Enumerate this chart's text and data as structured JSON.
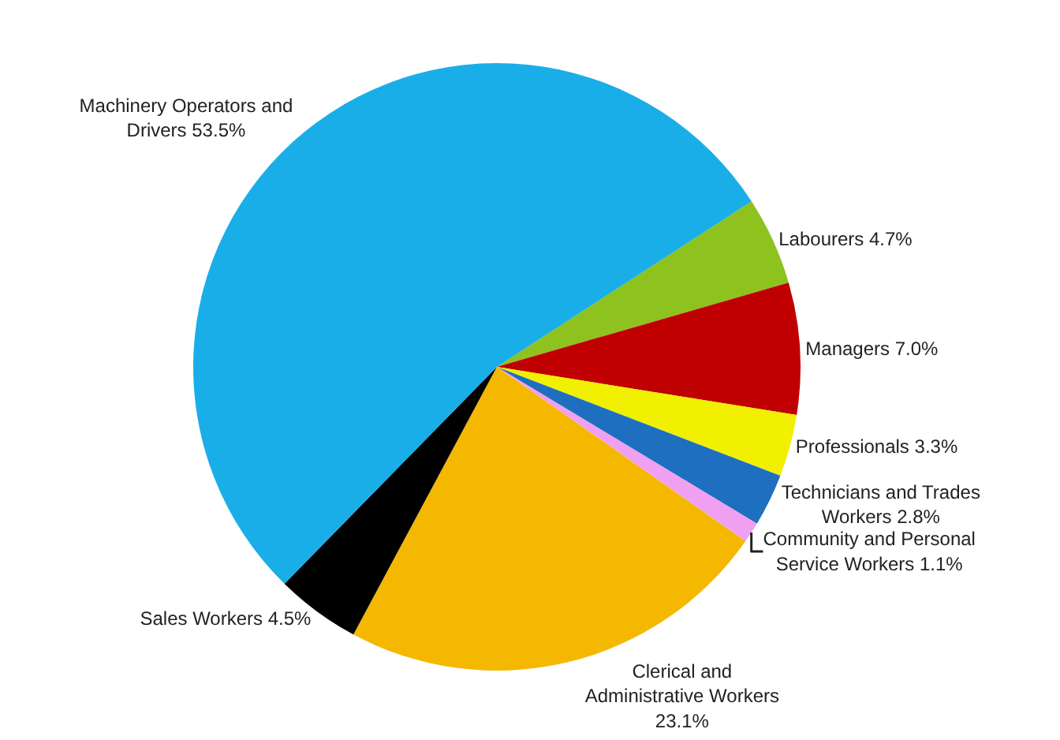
{
  "chart_data": {
    "type": "pie",
    "categories": [
      "Labourers",
      "Managers",
      "Professionals",
      "Technicians and Trades Workers",
      "Community and Personal Service Workers",
      "Clerical and Administrative Workers",
      "Sales Workers",
      "Machinery Operators and Drivers"
    ],
    "values": [
      4.7,
      7.0,
      3.3,
      2.8,
      1.1,
      23.1,
      4.5,
      53.5
    ],
    "value_labels": [
      "4.7%",
      "7.0%",
      "3.3%",
      "2.8%",
      "1.1%",
      "23.1%",
      "4.5%",
      "53.5%"
    ],
    "colors": [
      "#8dc21f",
      "#c00000",
      "#f0f000",
      "#1f6fc0",
      "#f0a0f0",
      "#f5b800",
      "#000000",
      "#1aaee8"
    ],
    "legend": false
  }
}
